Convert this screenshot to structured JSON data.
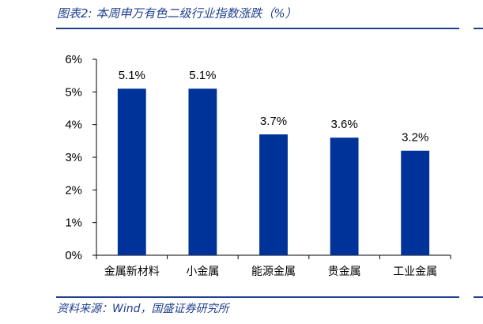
{
  "header": {
    "title": "图表2: 本周申万有色二级行业指数涨跌（%）"
  },
  "footer": {
    "source": "资料来源：Wind，国盛证券研究所"
  },
  "colors": {
    "bar": "#003399",
    "accent": "#1f3f8f"
  },
  "chart_data": {
    "type": "bar",
    "title": "本周申万有色二级行业指数涨跌（%）",
    "xlabel": "",
    "ylabel": "",
    "categories": [
      "金属新材料",
      "小金属",
      "能源金属",
      "贵金属",
      "工业金属"
    ],
    "values": [
      5.1,
      5.1,
      3.7,
      3.6,
      3.2
    ],
    "data_labels": [
      "5.1%",
      "5.1%",
      "3.7%",
      "3.6%",
      "3.2%"
    ],
    "ylim": [
      0,
      6
    ],
    "yticks": [
      0,
      1,
      2,
      3,
      4,
      5,
      6
    ],
    "ytick_labels": [
      "0%",
      "1%",
      "2%",
      "3%",
      "4%",
      "5%",
      "6%"
    ],
    "grid": false,
    "legend": "none"
  }
}
